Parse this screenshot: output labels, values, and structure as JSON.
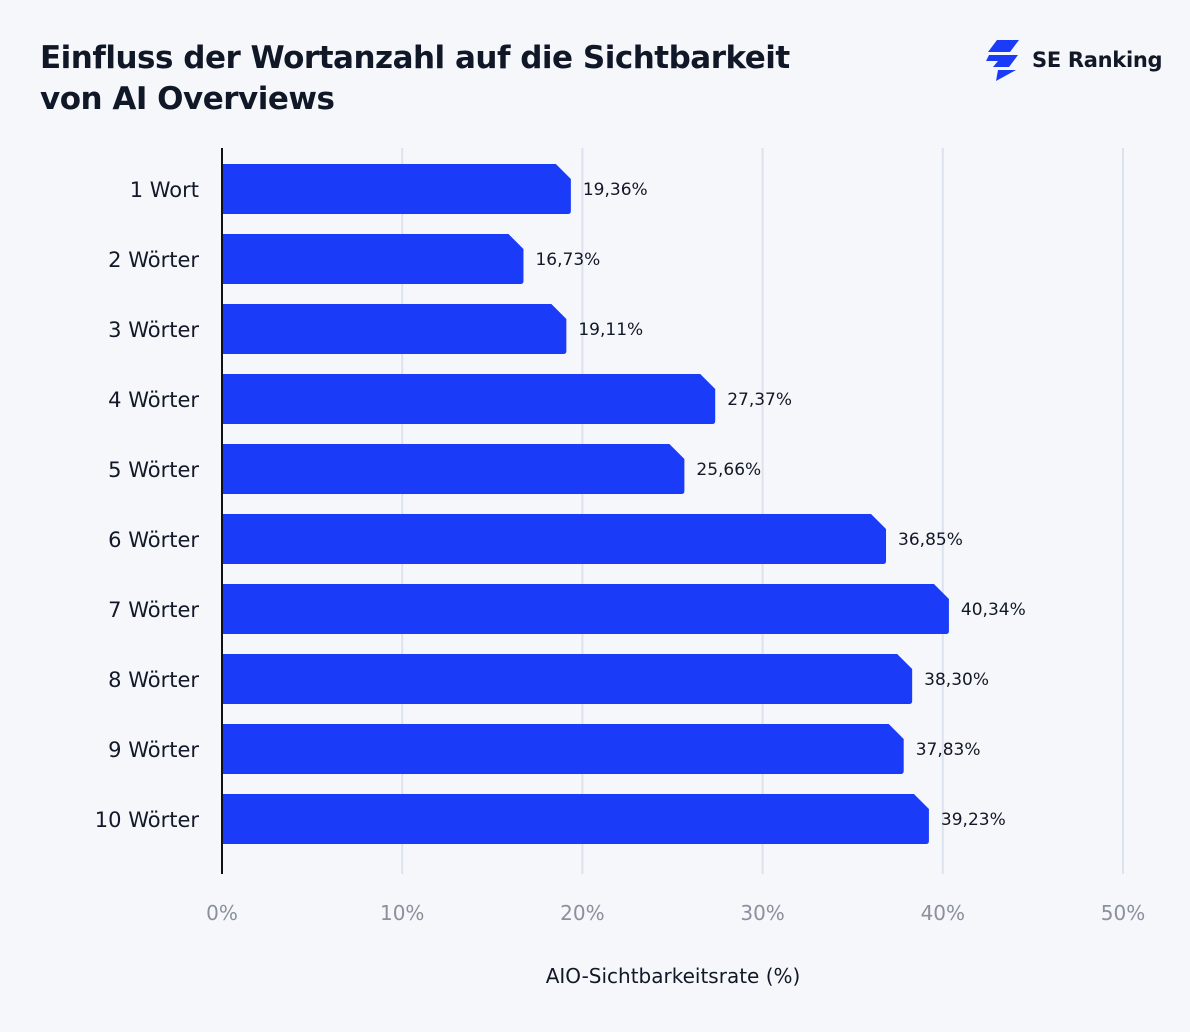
{
  "header": {
    "title_line1": "Einfluss der Wortanzahl auf die Sichtbarkeit",
    "title_line2": "von AI Overviews",
    "brand_name": "SE Ranking",
    "brand_icon": "se-ranking-logo-icon"
  },
  "colors": {
    "bar": "#1a3cf9",
    "background": "#f6f7fb",
    "grid": "#dde2ef",
    "axis": "#111111",
    "tick_label": "#8a909c",
    "text": "#111827"
  },
  "chart_data": {
    "type": "bar",
    "orientation": "horizontal",
    "categories": [
      "1 Wort",
      "2 Wörter",
      "3 Wörter",
      "4 Wörter",
      "5 Wörter",
      "6 Wörter",
      "7 Wörter",
      "8 Wörter",
      "9 Wörter",
      "10 Wörter"
    ],
    "values": [
      19.36,
      16.73,
      19.11,
      27.37,
      25.66,
      36.85,
      40.34,
      38.3,
      37.83,
      39.23
    ],
    "data_labels": [
      "19,36%",
      "16,73%",
      "19,11%",
      "27,37%",
      "25,66%",
      "36,85%",
      "40,34%",
      "38,30%",
      "37,83%",
      "39,23%"
    ],
    "x_ticks": [
      0,
      10,
      20,
      30,
      40,
      50
    ],
    "x_tick_labels": [
      "0%",
      "10%",
      "20%",
      "30%",
      "40%",
      "50%"
    ],
    "xlim": [
      0,
      50
    ],
    "xlabel": "AIO-Sichtbarkeitsrate (%)",
    "ylabel": "",
    "grid": "vertical",
    "legend": "none"
  }
}
